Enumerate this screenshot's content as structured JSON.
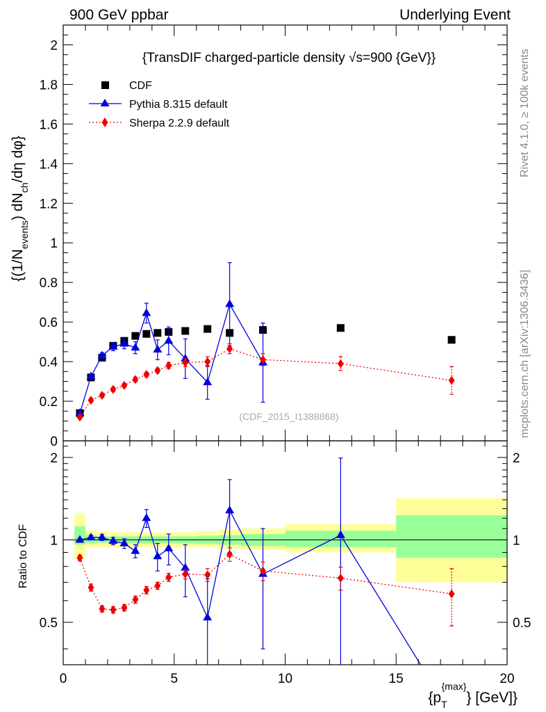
{
  "header": {
    "left": "900 GeV ppbar",
    "right": "Underlying Event"
  },
  "side_notes": {
    "top": "Rivet 4.1.0, ≥ 100k events",
    "bottom": "mcplots.cern.ch [arXiv:1306.3436]"
  },
  "chart_data": [
    {
      "type": "scatter",
      "panel": "main",
      "title": "{TransDIF charged-particle density √s=900 {GeV}}",
      "ylabel": "{(1/N_events) dN_ch/dη dφ}",
      "ylabel_parts": {
        "a": "{(1/N",
        "b": "events",
        "c": ") dN",
        "d": "ch",
        "e": "/dη dφ}"
      },
      "watermark": "(CDF_2015_I1388868)",
      "xlim": [
        0,
        20
      ],
      "ylim": [
        0,
        2.1
      ],
      "yticks": [
        0,
        0.2,
        0.4,
        0.6,
        0.8,
        1,
        1.2,
        1.4,
        1.6,
        1.8,
        2
      ],
      "ytick_labels": [
        "0",
        "0.2",
        "0.4",
        "0.6",
        "0.8",
        "1",
        "1.2",
        "1.4",
        "1.6",
        "1.8",
        "2"
      ],
      "legend": [
        "CDF",
        "Pythia 8.315 default",
        "Sherpa 2.2.9 default"
      ],
      "series": [
        {
          "name": "CDF",
          "color": "#000000",
          "marker": "square",
          "x": [
            0.75,
            1.25,
            1.75,
            2.25,
            2.75,
            3.25,
            3.75,
            4.25,
            4.75,
            5.5,
            6.5,
            7.5,
            9,
            12.5,
            17.5
          ],
          "xerr": [
            0.25,
            0.25,
            0.25,
            0.25,
            0.25,
            0.25,
            0.25,
            0.25,
            0.25,
            0.5,
            0.5,
            0.5,
            1,
            2.5,
            2.5
          ],
          "y": [
            0.14,
            0.32,
            0.42,
            0.48,
            0.505,
            0.53,
            0.54,
            0.545,
            0.55,
            0.555,
            0.565,
            0.545,
            0.56,
            0.57,
            0.51
          ]
        },
        {
          "name": "Pythia 8.315 default",
          "color": "#0000dd",
          "marker": "triangle",
          "line": "solid",
          "x": [
            0.75,
            1.25,
            1.75,
            2.25,
            2.75,
            3.25,
            3.75,
            4.25,
            4.75,
            5.5,
            6.5,
            7.5,
            9
          ],
          "y": [
            0.14,
            0.325,
            0.43,
            0.475,
            0.49,
            0.47,
            0.645,
            0.46,
            0.505,
            0.415,
            0.295,
            0.69,
            0.395
          ],
          "yerr": [
            0.01,
            0.012,
            0.015,
            0.02,
            0.025,
            0.03,
            0.05,
            0.05,
            0.07,
            0.1,
            0.085,
            0.21,
            0.2
          ]
        },
        {
          "name": "Sherpa 2.2.9 default",
          "color": "#ee0000",
          "marker": "diamond",
          "line": "dotted",
          "x": [
            0.75,
            1.25,
            1.75,
            2.25,
            2.75,
            3.25,
            3.75,
            4.25,
            4.75,
            5.5,
            6.5,
            7.5,
            9,
            12.5,
            17.5
          ],
          "y": [
            0.12,
            0.205,
            0.23,
            0.26,
            0.28,
            0.31,
            0.335,
            0.355,
            0.38,
            0.395,
            0.4,
            0.465,
            0.41,
            0.39,
            0.305
          ],
          "yerr": [
            0.008,
            0.01,
            0.01,
            0.01,
            0.01,
            0.012,
            0.012,
            0.012,
            0.015,
            0.02,
            0.025,
            0.025,
            0.03,
            0.035,
            0.07
          ]
        }
      ]
    },
    {
      "type": "scatter",
      "panel": "ratio",
      "ylabel": "Ratio to CDF",
      "xlabel": "{p_T^{max}} [GeV]}",
      "xlabel_parts": {
        "a": "{p",
        "sub": "T",
        "sup": "{max}",
        "b": "} [GeV]}"
      },
      "xlim": [
        0,
        20
      ],
      "ylim": [
        0.35,
        2.3
      ],
      "yscale": "log",
      "yticks": [
        0.5,
        1,
        2
      ],
      "ytick_labels": [
        "0.5",
        "1",
        "2"
      ],
      "xticks": [
        0,
        5,
        10,
        15,
        20
      ],
      "xtick_labels": [
        "0",
        "5",
        "10",
        "15",
        "20"
      ],
      "reference_bands": {
        "x_edges": [
          [
            0.5,
            1.0
          ],
          [
            1.0,
            1.5
          ],
          [
            1.5,
            2.0
          ],
          [
            2.0,
            2.5
          ],
          [
            2.5,
            3.0
          ],
          [
            3.0,
            3.5
          ],
          [
            3.5,
            4.0
          ],
          [
            4.0,
            4.5
          ],
          [
            4.5,
            5.0
          ],
          [
            5.0,
            6.0
          ],
          [
            6.0,
            7.0
          ],
          [
            7.0,
            8.0
          ],
          [
            8.0,
            10.0
          ],
          [
            10.0,
            15.0
          ],
          [
            15.0,
            20.0
          ]
        ],
        "stat": [
          [
            0.96,
            1.12
          ],
          [
            0.97,
            1.04
          ],
          [
            0.975,
            1.03
          ],
          [
            0.97,
            1.03
          ],
          [
            0.97,
            1.03
          ],
          [
            0.97,
            1.03
          ],
          [
            0.97,
            1.03
          ],
          [
            0.97,
            1.03
          ],
          [
            0.97,
            1.03
          ],
          [
            0.97,
            1.03
          ],
          [
            0.965,
            1.035
          ],
          [
            0.96,
            1.04
          ],
          [
            0.95,
            1.05
          ],
          [
            0.94,
            1.08
          ],
          [
            0.86,
            1.23
          ]
        ],
        "total": [
          [
            0.85,
            1.24
          ],
          [
            0.94,
            1.08
          ],
          [
            0.94,
            1.07
          ],
          [
            0.94,
            1.07
          ],
          [
            0.94,
            1.065
          ],
          [
            0.94,
            1.065
          ],
          [
            0.94,
            1.065
          ],
          [
            0.94,
            1.065
          ],
          [
            0.94,
            1.065
          ],
          [
            0.94,
            1.065
          ],
          [
            0.94,
            1.07
          ],
          [
            0.93,
            1.09
          ],
          [
            0.92,
            1.1
          ],
          [
            0.9,
            1.14
          ],
          [
            0.7,
            1.42
          ]
        ],
        "stat_color": "#99ff99",
        "total_color": "#ffff99"
      },
      "series": [
        {
          "name": "Pythia 8.315 default",
          "color": "#0000dd",
          "marker": "triangle",
          "line": "solid",
          "x": [
            0.75,
            1.25,
            1.75,
            2.25,
            2.75,
            3.25,
            3.75,
            4.25,
            4.75,
            5.5,
            6.5,
            7.5,
            9,
            12.5,
            16.2
          ],
          "y": [
            1.0,
            1.02,
            1.02,
            0.99,
            0.97,
            0.91,
            1.2,
            0.87,
            0.93,
            0.79,
            0.52,
            1.28,
            0.75,
            1.04,
            0.34
          ],
          "yerr": [
            0.015,
            0.02,
            0.025,
            0.03,
            0.04,
            0.05,
            0.09,
            0.1,
            0.12,
            0.17,
            0.2,
            0.38,
            0.35,
            0.95,
            0
          ],
          "marker_mask": [
            1,
            1,
            1,
            1,
            1,
            1,
            1,
            1,
            1,
            1,
            1,
            1,
            1,
            1,
            0
          ]
        },
        {
          "name": "Sherpa 2.2.9 default",
          "color": "#ee0000",
          "marker": "diamond",
          "line": "dotted",
          "x": [
            0.75,
            1.25,
            1.75,
            2.25,
            2.75,
            3.25,
            3.75,
            4.25,
            4.75,
            5.5,
            6.5,
            7.5,
            9,
            12.5,
            17.5
          ],
          "y": [
            0.86,
            0.67,
            0.56,
            0.555,
            0.565,
            0.605,
            0.655,
            0.68,
            0.73,
            0.75,
            0.745,
            0.885,
            0.77,
            0.725,
            0.635
          ],
          "yerr": [
            0.02,
            0.02,
            0.015,
            0.015,
            0.015,
            0.018,
            0.02,
            0.02,
            0.025,
            0.03,
            0.04,
            0.05,
            0.06,
            0.07,
            0.15
          ]
        }
      ]
    }
  ]
}
